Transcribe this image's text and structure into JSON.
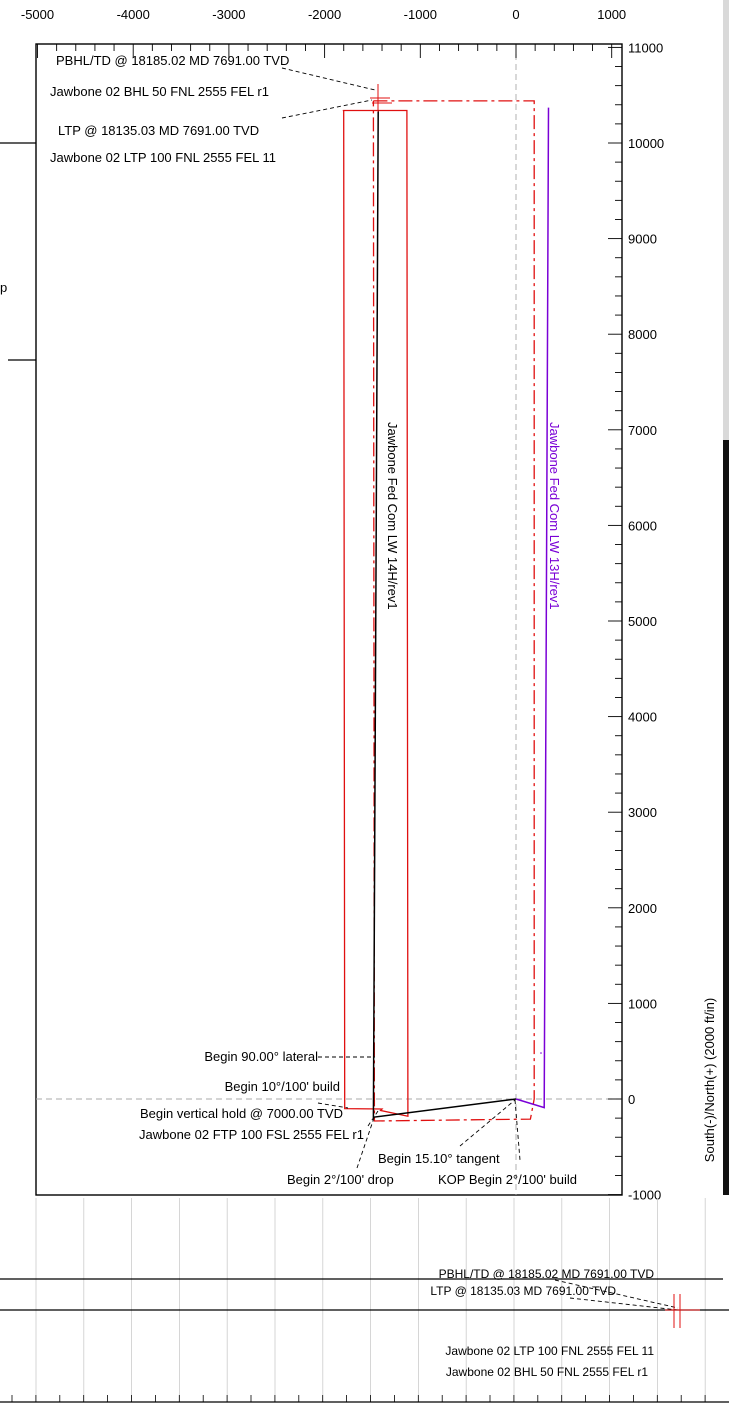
{
  "chart_data": {
    "type": "line",
    "title": "",
    "xlabel": "",
    "ylabel": "South(-)/North(+) (2000 ft/in)",
    "xlim": [
      -5000,
      1000
    ],
    "ylim": [
      -1000,
      11000
    ],
    "x_ticks": [
      "-5000",
      "-4000",
      "-3000",
      "-2000",
      "-1000",
      "0",
      "1000"
    ],
    "y_ticks": [
      "11000",
      "10000",
      "9000",
      "8000",
      "7000",
      "6000",
      "5000",
      "4000",
      "3000",
      "2000",
      "1000",
      "0",
      "-1000"
    ],
    "series": [
      {
        "name": "Jawbone Fed Com LW 14H/rev1",
        "color": "#000000",
        "x": [
          0,
          -1490,
          -1490,
          -1440
        ],
        "y": [
          0,
          -190,
          -190,
          10340
        ]
      },
      {
        "name": "Jawbone Fed Com LW 13H/rev1",
        "color": "#7a00d6",
        "x": [
          0,
          295,
          340
        ],
        "y": [
          0,
          -90,
          10370
        ]
      }
    ],
    "boundaries": [
      {
        "style": "solid",
        "color": "#e01010",
        "x": [
          -1800,
          -1790,
          -1400,
          -1415,
          -1130,
          -1140,
          -1810,
          -1800
        ],
        "y": [
          10340,
          -100,
          -105,
          -120,
          -180,
          10340,
          10340,
          10340
        ]
      },
      {
        "style": "dashdot",
        "color": "#e01010",
        "x": [
          -1490,
          190,
          190,
          150,
          -1480,
          -1490
        ],
        "y": [
          10440,
          10440,
          0,
          -210,
          -230,
          10440
        ]
      }
    ],
    "annotations": [
      "PBHL/TD @ 18185.02 MD 7691.00 TVD",
      "Jawbone 02 BHL 50 FNL 2555 FEL r1",
      "LTP @ 18135.03 MD 7691.00 TVD",
      "Jawbone 02 LTP 100 FNL 2555 FEL 11",
      "Begin 90.00° lateral",
      "Begin 10°/100' build",
      "Begin vertical hold @ 7000.00 TVD",
      "Jawbone 02 FTP 100 FSL 2555 FEL r1",
      "Begin 15.10° tangent",
      "Begin 2°/100' drop",
      "KOP Begin 2°/100' build"
    ],
    "lower_panel_annotations": [
      "PBHL/TD @ 18185.02 MD 7691.00 TVD",
      "LTP @ 18135.03 MD 7691.00 TVD",
      "Jawbone 02 LTP 100 FNL 2555 FEL 11",
      "Jawbone 02 BHL 50 FNL 2555 FEL r1"
    ],
    "side_label": "p",
    "grid": false,
    "legend": "none"
  }
}
